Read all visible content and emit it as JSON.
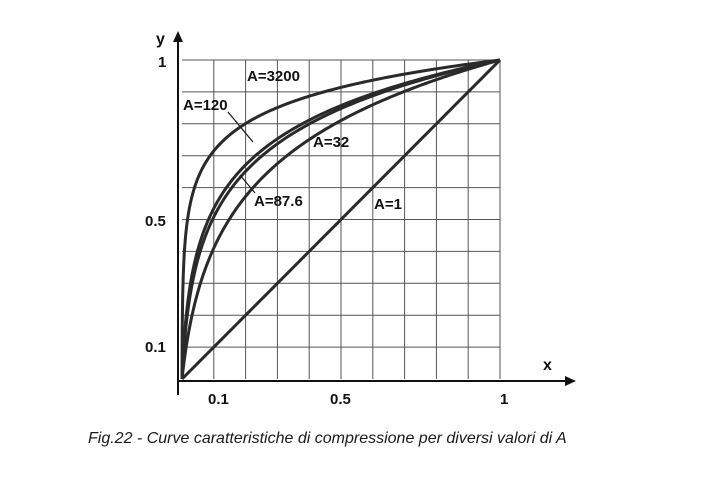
{
  "chart_data": {
    "type": "line",
    "title": "",
    "xlabel": "x",
    "ylabel": "y",
    "xlim": [
      0,
      1
    ],
    "ylim": [
      0,
      1
    ],
    "grid": true,
    "x_tick_labels": [
      "0.1",
      "0.5",
      "1"
    ],
    "y_tick_labels": [
      "0.1",
      "0.5",
      "1"
    ],
    "series": [
      {
        "name": "A=1",
        "A": 1
      },
      {
        "name": "A=32",
        "A": 32
      },
      {
        "name": "A=87.6",
        "A": 87.6
      },
      {
        "name": "A=120",
        "A": 120
      },
      {
        "name": "A=3200",
        "A": 3200
      }
    ],
    "x": [
      0,
      0.01,
      0.03,
      0.06,
      0.1,
      0.15,
      0.2,
      0.3,
      0.4,
      0.5,
      0.6,
      0.7,
      0.8,
      0.9,
      1
    ],
    "values": {
      "A=1": [
        0,
        0.01,
        0.03,
        0.06,
        0.1,
        0.15,
        0.2,
        0.3,
        0.4,
        0.5,
        0.6,
        0.7,
        0.8,
        0.9,
        1
      ],
      "A=32": [
        0,
        0.08,
        0.21,
        0.34,
        0.45,
        0.55,
        0.62,
        0.72,
        0.8,
        0.86,
        0.9,
        0.94,
        0.96,
        0.98,
        1
      ],
      "A=87.6": [
        0,
        0.13,
        0.28,
        0.4,
        0.5,
        0.59,
        0.66,
        0.75,
        0.82,
        0.87,
        0.91,
        0.94,
        0.96,
        0.98,
        1
      ],
      "A=120": [
        0,
        0.16,
        0.32,
        0.44,
        0.55,
        0.63,
        0.69,
        0.78,
        0.84,
        0.88,
        0.92,
        0.95,
        0.97,
        0.99,
        1
      ],
      "A=3200": [
        0,
        0.4,
        0.56,
        0.66,
        0.74,
        0.79,
        0.83,
        0.87,
        0.9,
        0.92,
        0.94,
        0.96,
        0.97,
        0.99,
        1
      ]
    }
  },
  "caption": "Fig.22 - Curve caratteristiche di compressione per diversi valori  di A"
}
